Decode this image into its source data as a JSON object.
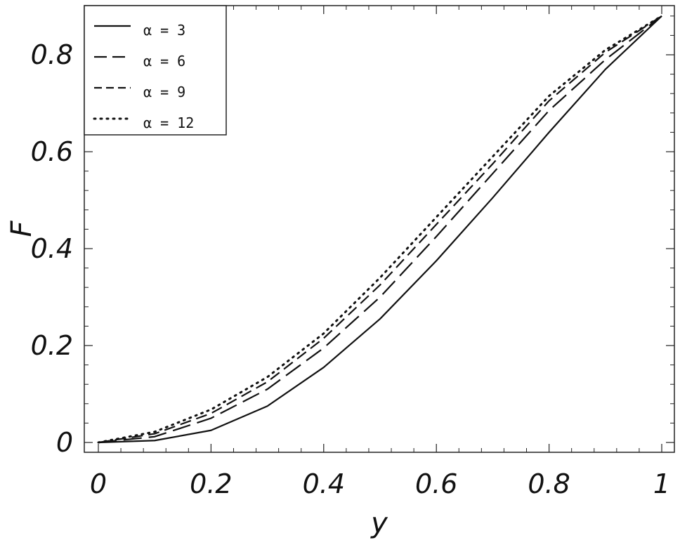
{
  "chart_data": {
    "type": "line",
    "xlabel": "y",
    "ylabel": "F",
    "xlim": [
      0,
      1
    ],
    "ylim": [
      -0.02,
      0.9
    ],
    "xticks": [
      {
        "value": 0,
        "label": "0"
      },
      {
        "value": 0.2,
        "label": "0.2"
      },
      {
        "value": 0.4,
        "label": "0.4"
      },
      {
        "value": 0.6,
        "label": "0.6"
      },
      {
        "value": 0.8,
        "label": "0.8"
      },
      {
        "value": 1,
        "label": "1"
      }
    ],
    "yticks": [
      {
        "value": 0,
        "label": "0"
      },
      {
        "value": 0.2,
        "label": "0.2"
      },
      {
        "value": 0.4,
        "label": "0.4"
      },
      {
        "value": 0.6,
        "label": "0.6"
      },
      {
        "value": 0.8,
        "label": "0.8"
      }
    ],
    "legend_position": "top-left",
    "grid": false,
    "x": [
      0,
      0.1,
      0.2,
      0.3,
      0.4,
      0.5,
      0.6,
      0.7,
      0.8,
      0.9,
      1.0
    ],
    "series": [
      {
        "name": "α = 3",
        "dash": "solid",
        "values": [
          0,
          0.004,
          0.025,
          0.075,
          0.155,
          0.255,
          0.375,
          0.505,
          0.64,
          0.77,
          0.88
        ]
      },
      {
        "name": "α = 6",
        "dash": "long-dash",
        "values": [
          0,
          0.012,
          0.05,
          0.11,
          0.195,
          0.3,
          0.425,
          0.555,
          0.685,
          0.79,
          0.88
        ]
      },
      {
        "name": "α = 9",
        "dash": "short-dash",
        "values": [
          0,
          0.018,
          0.06,
          0.125,
          0.215,
          0.325,
          0.45,
          0.575,
          0.705,
          0.805,
          0.88
        ]
      },
      {
        "name": "α = 12",
        "dash": "dotted",
        "values": [
          0,
          0.022,
          0.068,
          0.135,
          0.225,
          0.34,
          0.465,
          0.59,
          0.715,
          0.81,
          0.88
        ]
      }
    ]
  }
}
